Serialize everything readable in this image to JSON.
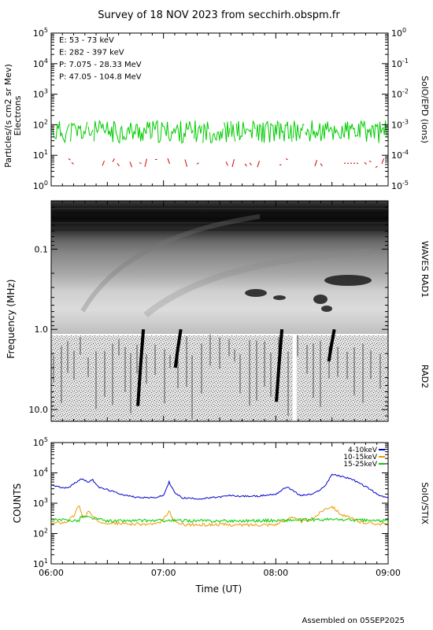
{
  "title": "Survey of 18 NOV 2023 from secchirh.obspm.fr",
  "footer": "Assembled on 05SEP2025",
  "xaxis": {
    "label": "Time (UT)",
    "range": [
      "06:00",
      "09:00"
    ],
    "ticks": [
      "06:00",
      "07:00",
      "08:00",
      "09:00"
    ]
  },
  "chart_data": [
    {
      "type": "line",
      "id": "particles",
      "ylabel": "Particles/(s cm2 sr Mev)",
      "ylabel2": "Electrons",
      "right_label": "SolO/EPD (ions)",
      "yscale": "log",
      "ylim": [
        1,
        100000
      ],
      "yticks": [
        "10^0",
        "10^1",
        "10^2",
        "10^3",
        "10^4",
        "10^5"
      ],
      "y2lim": [
        1e-05,
        1
      ],
      "y2ticks": [
        "10^-5",
        "10^-4",
        "10^-3",
        "10^-2",
        "10^-1",
        "10^0"
      ],
      "legend_position": "top-left",
      "series": [
        {
          "name": "E: 53 - 73 keV",
          "color": "#00cc00",
          "level_range": [
            25,
            140
          ],
          "note": "noisy continuous"
        },
        {
          "name": "E: 282 - 397 keV",
          "color": "#cc0000",
          "level_range": [
            4,
            8
          ],
          "note": "sparse"
        },
        {
          "name": "P: 7.075 - 28.33 MeV",
          "color": "#000000"
        },
        {
          "name": "P: 47.05 - 104.8 MeV",
          "color": "#0000cc"
        }
      ]
    },
    {
      "type": "heatmap",
      "id": "waves",
      "ylabel": "Frequency (MHz)",
      "right_labels": [
        "WAVES RAD1",
        "RAD2"
      ],
      "yscale": "log",
      "ylim": [
        0.025,
        14
      ],
      "yticks": [
        "0.1",
        "1.0",
        "10.0"
      ],
      "colormap": "grayscale",
      "bursts": [
        {
          "t": "06:48",
          "f_top": 1.0,
          "f_bottom": 9.0
        },
        {
          "t": "07:08",
          "f_top": 1.0,
          "f_bottom": 3.0
        },
        {
          "t": "08:02",
          "f_top": 1.0,
          "f_bottom": 8.0
        },
        {
          "t": "08:30",
          "f_top": 1.0,
          "f_bottom": 2.5
        }
      ],
      "data_gap": "08:09"
    },
    {
      "type": "line",
      "id": "stix",
      "ylabel": "COUNTS",
      "right_label": "SolO/STIX",
      "yscale": "log",
      "ylim": [
        10,
        100000
      ],
      "yticks": [
        "10^1",
        "10^2",
        "10^3",
        "10^4",
        "10^5"
      ],
      "legend_position": "top-right",
      "series": [
        {
          "name": "4-10keV",
          "color": "#0000cc",
          "x_minutes": [
            0,
            6,
            10,
            16,
            20,
            22,
            26,
            30,
            34,
            40,
            45,
            55,
            60,
            63,
            66,
            70,
            80,
            90,
            96,
            100,
            110,
            120,
            126,
            133,
            140,
            146,
            150,
            160,
            170,
            175,
            180
          ],
          "values": [
            4000,
            3200,
            3500,
            6500,
            5000,
            6000,
            3200,
            2800,
            2300,
            1800,
            1600,
            1500,
            1800,
            5000,
            2200,
            1500,
            1400,
            1600,
            1800,
            1700,
            1700,
            2000,
            3500,
            1800,
            2000,
            3500,
            9000,
            6500,
            3000,
            1800,
            1500
          ]
        },
        {
          "name": "10-15keV",
          "color": "#ee9900",
          "x_minutes": [
            0,
            8,
            12,
            15,
            17,
            20,
            24,
            30,
            40,
            50,
            58,
            63,
            66,
            70,
            80,
            90,
            100,
            110,
            120,
            125,
            128,
            133,
            138,
            142,
            146,
            150,
            155,
            165,
            175,
            180
          ],
          "values": [
            220,
            240,
            380,
            900,
            300,
            550,
            260,
            230,
            210,
            200,
            210,
            520,
            240,
            200,
            190,
            200,
            190,
            195,
            200,
            260,
            380,
            250,
            270,
            400,
            650,
            800,
            420,
            240,
            210,
            200
          ]
        },
        {
          "name": "15-25keV",
          "color": "#00cc00",
          "x_minutes": [
            0,
            15,
            16,
            30,
            60,
            90,
            120,
            150,
            180
          ],
          "values": [
            280,
            270,
            380,
            260,
            270,
            260,
            270,
            290,
            260
          ]
        }
      ]
    }
  ]
}
